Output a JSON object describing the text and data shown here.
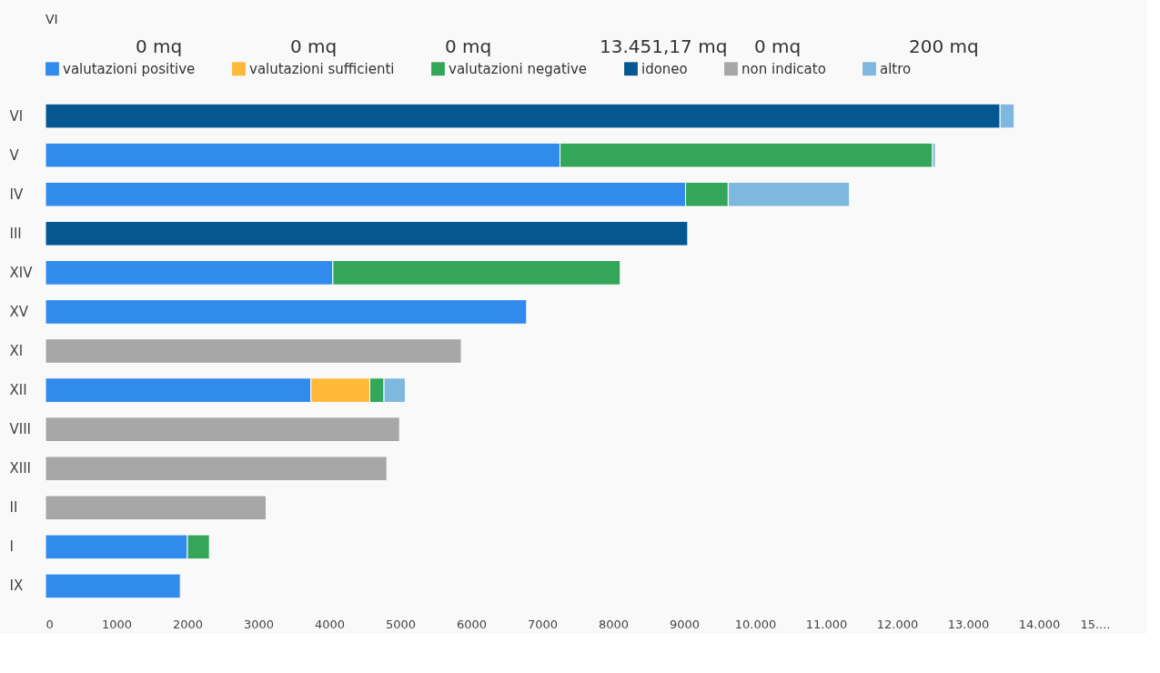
{
  "chart_data": {
    "type": "bar",
    "orientation": "horizontal",
    "stacked": true,
    "categories": [
      "VI",
      "V",
      "IV",
      "III",
      "XIV",
      "XV",
      "XI",
      "XII",
      "VIII",
      "XIII",
      "II",
      "I",
      "IX"
    ],
    "series": [
      {
        "name": "valutazioni positive",
        "color": "#318bec",
        "values": [
          null,
          7250,
          9020,
          null,
          4050,
          6780,
          null,
          3740,
          null,
          null,
          null,
          2000,
          1900
        ]
      },
      {
        "name": "valutazioni sufficienti",
        "color": "#ffb938",
        "values": [
          null,
          null,
          null,
          null,
          null,
          null,
          null,
          830,
          null,
          null,
          null,
          null,
          null
        ]
      },
      {
        "name": "valutazioni negative",
        "color": "#33a65a",
        "values": [
          null,
          5250,
          600,
          null,
          4050,
          null,
          null,
          200,
          null,
          null,
          null,
          310,
          null
        ]
      },
      {
        "name": "idoneo",
        "color": "#045791",
        "values": [
          13451.17,
          null,
          null,
          9050,
          null,
          null,
          null,
          null,
          null,
          null,
          null,
          null,
          null
        ]
      },
      {
        "name": "non indicato",
        "color": "#a7a7a7",
        "values": [
          null,
          null,
          null,
          null,
          null,
          null,
          5860,
          null,
          4990,
          4810,
          3110,
          null,
          null
        ]
      },
      {
        "name": "altro",
        "color": "#7fb8de",
        "values": [
          200,
          40,
          1710,
          null,
          null,
          null,
          null,
          300,
          null,
          null,
          null,
          null,
          null
        ]
      }
    ],
    "xlim": [
      0,
      15000
    ],
    "xticks": [
      0,
      1000,
      2000,
      3000,
      4000,
      5000,
      6000,
      7000,
      8000,
      9000,
      {
        "value": 10000,
        "label": "10.000"
      },
      {
        "value": 11000,
        "label": "11.000"
      },
      {
        "value": 12000,
        "label": "12.000"
      },
      {
        "value": 13000,
        "label": "13.000"
      },
      {
        "value": 14000,
        "label": "14.000"
      },
      {
        "value": 15000,
        "label": "15...."
      }
    ],
    "grid": false,
    "legend": "top",
    "annotations": [
      "VI",
      "0 mq",
      "0 mq",
      "0 mq",
      "13.451,17 mq",
      "0 mq",
      "200 mq"
    ]
  }
}
